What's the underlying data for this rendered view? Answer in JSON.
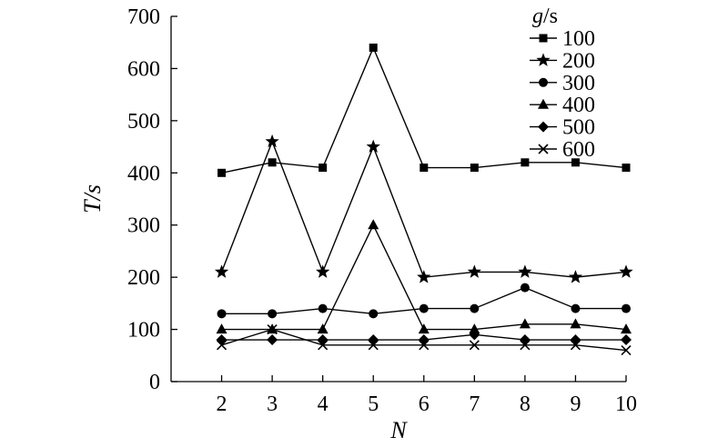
{
  "chart_data": {
    "type": "line",
    "xlabel": "N",
    "ylabel": "T/s",
    "x": [
      2,
      3,
      4,
      5,
      6,
      7,
      8,
      9,
      10
    ],
    "xlim": [
      1,
      10
    ],
    "ylim": [
      0,
      700
    ],
    "yticks": [
      0,
      100,
      200,
      300,
      400,
      500,
      600,
      700
    ],
    "xticks": [
      2,
      3,
      4,
      5,
      6,
      7,
      8,
      9,
      10
    ],
    "grid": false,
    "legend": {
      "title": "g/s",
      "placement": "top-right"
    },
    "series": [
      {
        "name": "100",
        "marker": "square",
        "values": [
          400,
          420,
          410,
          640,
          410,
          410,
          420,
          420,
          410
        ]
      },
      {
        "name": "200",
        "marker": "star",
        "values": [
          210,
          460,
          210,
          450,
          200,
          210,
          210,
          200,
          210
        ]
      },
      {
        "name": "300",
        "marker": "circle",
        "values": [
          130,
          130,
          140,
          130,
          140,
          140,
          180,
          140,
          140
        ]
      },
      {
        "name": "400",
        "marker": "triangle",
        "values": [
          100,
          100,
          100,
          300,
          100,
          100,
          110,
          110,
          100
        ]
      },
      {
        "name": "500",
        "marker": "diamond",
        "values": [
          80,
          80,
          80,
          80,
          80,
          90,
          80,
          80,
          80
        ]
      },
      {
        "name": "600",
        "marker": "x",
        "values": [
          70,
          100,
          70,
          70,
          70,
          70,
          70,
          70,
          60
        ]
      }
    ],
    "color": "#000000"
  }
}
